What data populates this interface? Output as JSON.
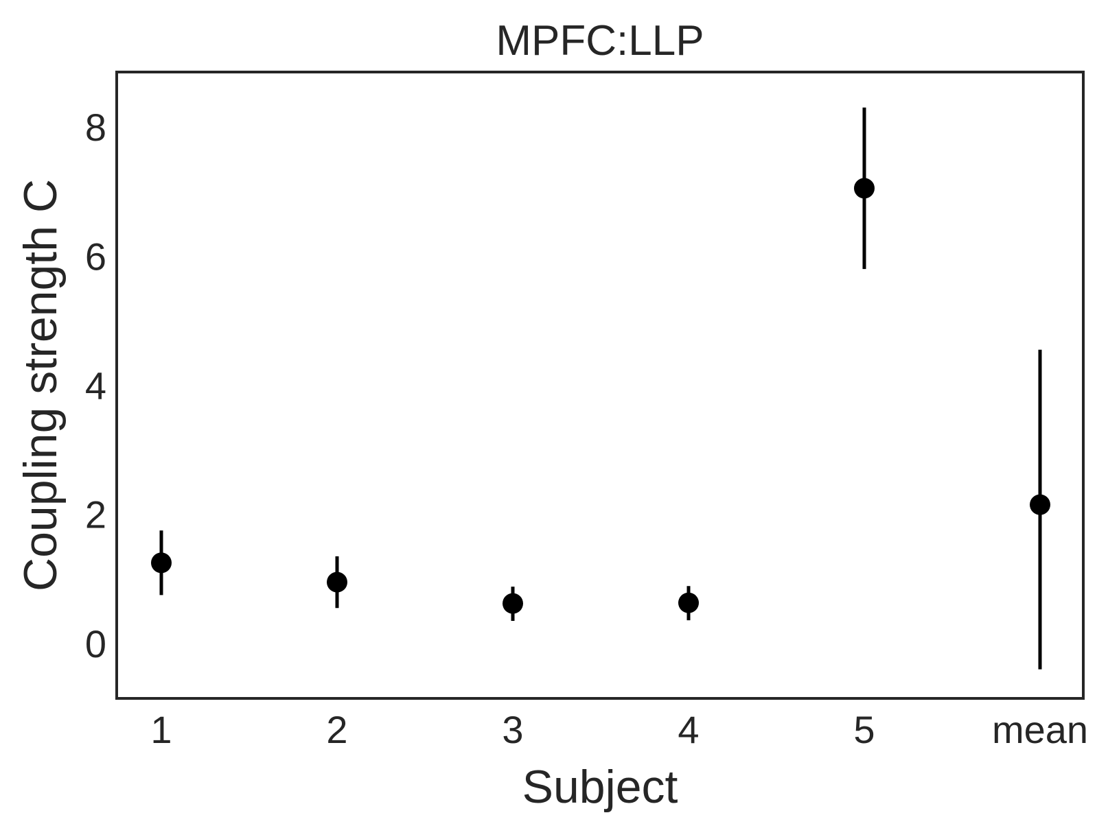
{
  "chart_data": {
    "type": "scatter",
    "title": "MPFC:LLP",
    "xlabel": "Subject",
    "ylabel": "Coupling strength C",
    "categories": [
      "1",
      "2",
      "3",
      "4",
      "5",
      "mean"
    ],
    "series": [
      {
        "values": [
          1.25,
          0.95,
          0.62,
          0.63,
          7.05,
          2.15
        ],
        "error_low": [
          0.75,
          0.55,
          0.35,
          0.36,
          5.8,
          -0.4
        ],
        "error_high": [
          1.75,
          1.35,
          0.88,
          0.89,
          8.3,
          4.55
        ]
      }
    ],
    "ylim": [
      -0.85,
      8.85
    ],
    "yticks": [
      0,
      2,
      4,
      6,
      8
    ],
    "grid": false,
    "colors": {
      "marker": "#000000",
      "frame": "#262626",
      "text": "#262626",
      "background": "#ffffff"
    }
  }
}
